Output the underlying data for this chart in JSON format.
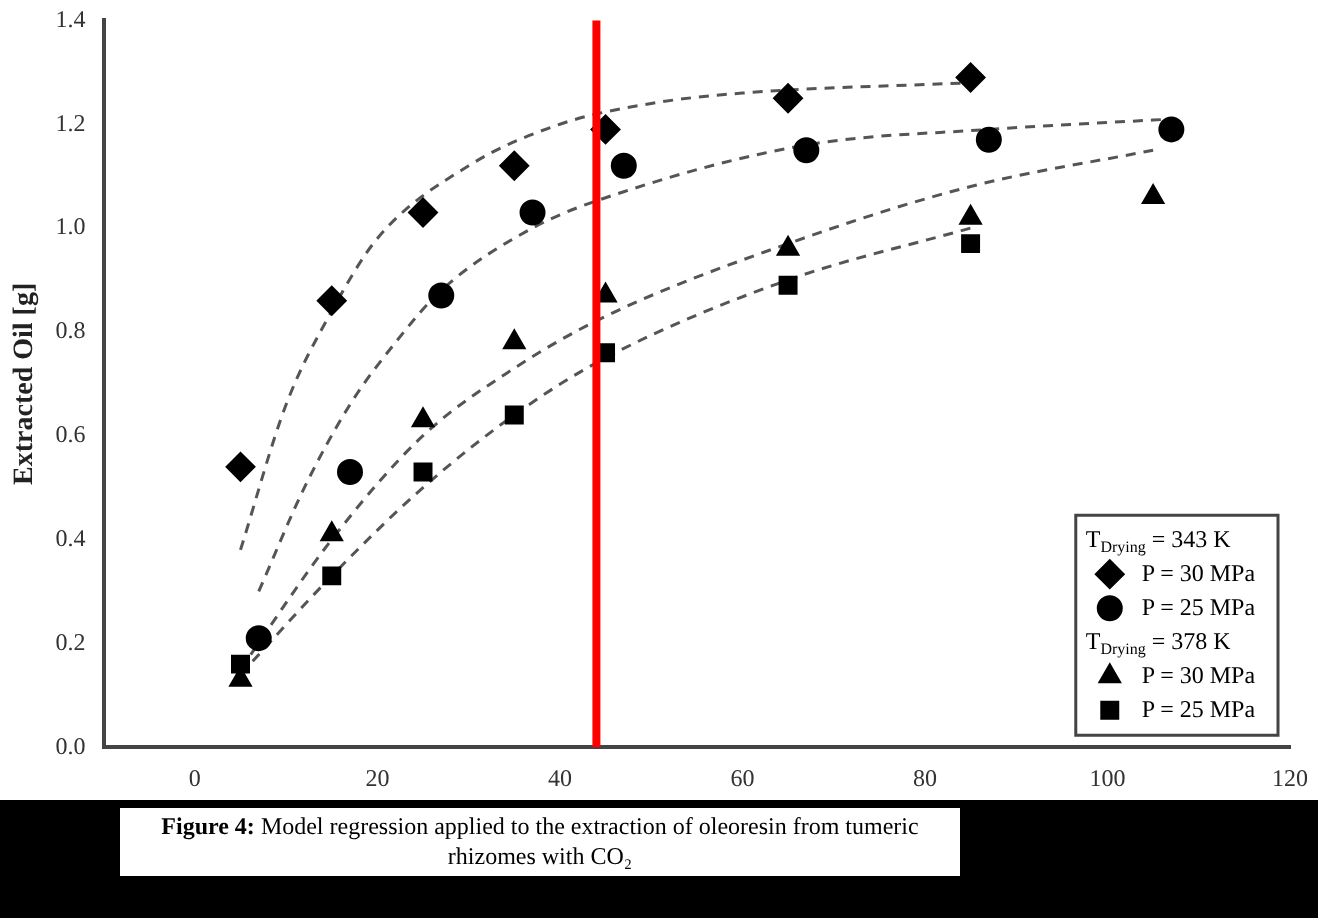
{
  "chart_data": {
    "type": "scatter",
    "ylabel": "Extracted Oil [g]",
    "xlim": [
      -10,
      120
    ],
    "xticks": [
      0,
      20,
      40,
      60,
      80,
      100,
      120
    ],
    "ylim": [
      0,
      1.4
    ],
    "yticks": [
      {
        "value": 0,
        "label": "0.0"
      },
      {
        "value": 0.2,
        "label": "0.2"
      },
      {
        "value": 0.4,
        "label": "0.4"
      },
      {
        "value": 0.6,
        "label": "0.6"
      },
      {
        "value": 0.8,
        "label": "0.8"
      },
      {
        "value": 1,
        "label": "1.0"
      },
      {
        "value": 1.2,
        "label": "1.2"
      },
      {
        "value": 1.4,
        "label": "1.4"
      }
    ],
    "grid": false,
    "legend": "bottom right",
    "series": [
      {
        "name": "P = 30 MPa",
        "marker": "diamond",
        "color": "#000000",
        "x": [
          5,
          15,
          25,
          35,
          45,
          65,
          85
        ],
        "values": [
          0.54,
          0.86,
          1.03,
          1.12,
          1.19,
          1.25,
          1.29
        ]
      },
      {
        "name": "P = 25 MPa",
        "marker": "circle",
        "color": "#000000",
        "x": [
          7,
          17,
          27,
          37,
          47,
          67,
          87,
          107
        ],
        "values": [
          0.21,
          0.53,
          0.87,
          1.03,
          1.12,
          1.15,
          1.17,
          1.19
        ]
      },
      {
        "name": "P = 30 MPa",
        "marker": "triangle",
        "color": "#000000",
        "x": [
          5,
          15,
          25,
          35,
          45,
          65,
          85,
          105
        ],
        "values": [
          0.13,
          0.41,
          0.63,
          0.78,
          0.87,
          0.96,
          1.02,
          1.06
        ]
      },
      {
        "name": "P = 25 MPa",
        "marker": "square",
        "color": "#000000",
        "x": [
          5,
          15,
          25,
          35,
          45,
          65,
          85
        ],
        "values": [
          0.16,
          0.33,
          0.53,
          0.64,
          0.76,
          0.89,
          0.97
        ]
      },
      {
        "type": "line",
        "marker": "none",
        "line_style": "dashed",
        "color": "#555555",
        "x": [
          5,
          10,
          15,
          20,
          30,
          40,
          50,
          60,
          85
        ],
        "values": [
          0.38,
          0.66,
          0.84,
          0.98,
          1.12,
          1.2,
          1.24,
          1.26,
          1.28
        ]
      },
      {
        "type": "line",
        "marker": "none",
        "line_style": "dashed",
        "color": "#555555",
        "x": [
          7,
          12,
          17,
          22,
          27,
          37,
          47,
          67,
          87,
          107
        ],
        "values": [
          0.3,
          0.5,
          0.66,
          0.78,
          0.88,
          1.0,
          1.07,
          1.16,
          1.19,
          1.21
        ]
      },
      {
        "type": "line",
        "marker": "none",
        "line_style": "dashed",
        "color": "#555555",
        "x": [
          5,
          15,
          25,
          35,
          45,
          65,
          85,
          105
        ],
        "values": [
          0.15,
          0.4,
          0.6,
          0.73,
          0.83,
          0.97,
          1.08,
          1.15
        ]
      },
      {
        "type": "line",
        "marker": "none",
        "line_style": "dashed",
        "color": "#555555",
        "x": [
          5,
          15,
          25,
          35,
          45,
          65,
          85
        ],
        "values": [
          0.14,
          0.33,
          0.5,
          0.64,
          0.75,
          0.9,
          1.0
        ]
      }
    ],
    "ref_lines": [
      {
        "axis": "x",
        "value": 44,
        "color": "#ff0000",
        "line_style": "solid"
      }
    ],
    "annotations": [
      "T$_{Drying}$ = 343 K",
      "T$_{Drying}$ = 378 K",
      "Figure 4: Model regression applied to the extraction of oleoresin from tumeric rhizomes with CO₂"
    ]
  }
}
